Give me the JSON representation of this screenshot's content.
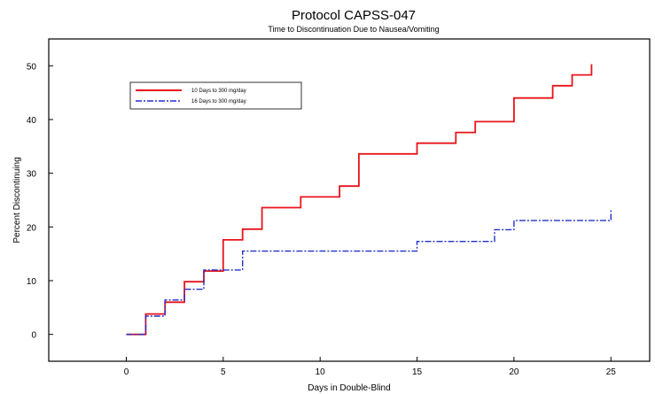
{
  "chart_data": {
    "type": "line",
    "title": "Protocol CAPSS-047",
    "subtitle": "Time to Discontinuation Due to Nausea/Vomiting",
    "xlabel": "Days in Double-Blind",
    "ylabel": "Percent Discontinuing",
    "xlim": [
      -4,
      27
    ],
    "ylim": [
      -5,
      55
    ],
    "xticks": [
      0,
      5,
      10,
      15,
      20,
      25
    ],
    "yticks": [
      0,
      10,
      20,
      30,
      40,
      50
    ],
    "grid": false,
    "legend_position": "top-left",
    "step": true,
    "series": [
      {
        "name": "10 Days to 300 mg/day",
        "color": "#e8141c",
        "dash": "solid",
        "x": [
          0,
          1,
          2,
          3,
          4,
          5,
          6,
          7,
          9,
          11,
          12,
          15,
          17,
          18,
          20,
          22,
          23,
          24
        ],
        "y": [
          0,
          3.8,
          6.0,
          9.8,
          11.8,
          17.6,
          19.6,
          23.6,
          25.6,
          27.6,
          33.6,
          35.6,
          37.6,
          39.6,
          44.0,
          46.3,
          48.3,
          50.3
        ]
      },
      {
        "name": "16 Days to 300 mg/day",
        "color": "#2430c8",
        "dash": "dashdot",
        "x": [
          0,
          1,
          2,
          3,
          4,
          6,
          15,
          19,
          20,
          25
        ],
        "y": [
          0,
          3.4,
          6.4,
          8.4,
          12.0,
          15.5,
          17.3,
          19.5,
          21.2,
          23.2
        ]
      }
    ]
  }
}
